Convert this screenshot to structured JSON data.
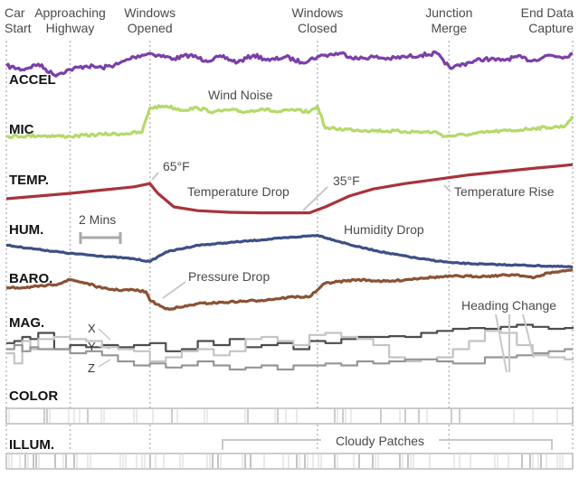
{
  "events": [
    {
      "label": [
        "Car",
        "Start"
      ],
      "x": 0
    },
    {
      "label": [
        "Approaching",
        "Highway"
      ],
      "x": 16
    },
    {
      "label": [
        "Windows",
        "Opened"
      ],
      "x": 36
    },
    {
      "label": [
        "Windows",
        "Closed"
      ],
      "x": 78
    },
    {
      "label": [
        "Junction",
        "Merge"
      ],
      "x": 111
    },
    {
      "label": [
        "End Data",
        "Capture"
      ],
      "x": 142
    }
  ],
  "sensors": [
    "ACCEL",
    "MIC",
    "TEMP.",
    "HUM.",
    "BARO.",
    "MAG.",
    "COLOR",
    "ILLUM."
  ],
  "scale_label": "2 Mins",
  "annotations": {
    "wind_noise": "Wind Noise",
    "temp_65": "65°F",
    "temp_drop": "Temperature Drop",
    "temp_35": "35°F",
    "temp_rise": "Temperature Rise",
    "humidity_drop": "Humidity Drop",
    "pressure_drop": "Pressure Drop",
    "heading_change": "Heading Change",
    "cloudy_patches": "Cloudy Patches"
  },
  "mag_axes": [
    "X",
    "Y",
    "Z"
  ],
  "colors": {
    "accel": "#7b3fa8",
    "mic": "#b5d96a",
    "temp": "#a8333b",
    "hum": "#3d4f86",
    "baro": "#8a5234",
    "mag_x": "#4d4d4d",
    "mag_y": "#c4c4c4",
    "mag_z": "#969696",
    "guide": "#b9b9b9",
    "annotation_line": "#c8c8c8"
  },
  "chart_data": {
    "type": "line",
    "x_unit": "minutes",
    "xlim": [
      0,
      142
    ],
    "series": [
      {
        "name": "ACCEL",
        "x": [
          0,
          4,
          8,
          12,
          16,
          20,
          24,
          28,
          32,
          34,
          36,
          38,
          42,
          46,
          50,
          54,
          58,
          62,
          66,
          70,
          74,
          78,
          80,
          84,
          88,
          92,
          96,
          100,
          104,
          108,
          110,
          112,
          116,
          120,
          124,
          128,
          132,
          136,
          140,
          142
        ],
        "y": [
          0.55,
          0.45,
          0.6,
          0.3,
          0.45,
          0.55,
          0.5,
          0.6,
          0.8,
          0.85,
          0.9,
          0.85,
          0.75,
          0.85,
          0.7,
          0.8,
          0.65,
          0.85,
          0.7,
          0.8,
          0.65,
          0.8,
          0.85,
          0.9,
          0.75,
          0.8,
          0.75,
          0.8,
          0.85,
          0.9,
          0.6,
          0.5,
          0.65,
          0.75,
          0.7,
          0.8,
          0.7,
          0.85,
          0.8,
          0.9
        ]
      },
      {
        "name": "MIC",
        "x": [
          0,
          8,
          16,
          24,
          30,
          34,
          36,
          40,
          44,
          48,
          52,
          56,
          60,
          64,
          68,
          72,
          76,
          78,
          80,
          90,
          100,
          108,
          110,
          116,
          122,
          128,
          132,
          136,
          140,
          142
        ],
        "y": [
          0.2,
          0.22,
          0.2,
          0.25,
          0.27,
          0.3,
          0.9,
          0.95,
          0.85,
          0.9,
          0.8,
          0.85,
          0.8,
          0.88,
          0.8,
          0.85,
          0.8,
          0.95,
          0.4,
          0.35,
          0.32,
          0.3,
          0.2,
          0.25,
          0.32,
          0.35,
          0.4,
          0.42,
          0.45,
          0.7
        ]
      },
      {
        "name": "TEMP.",
        "x": [
          0,
          8,
          16,
          24,
          32,
          36,
          38,
          42,
          48,
          56,
          64,
          72,
          76,
          80,
          86,
          92,
          100,
          108,
          116,
          124,
          132,
          138,
          142
        ],
        "y": [
          0.2,
          0.25,
          0.3,
          0.36,
          0.42,
          0.48,
          0.3,
          0.05,
          -0.02,
          -0.05,
          -0.06,
          -0.06,
          -0.06,
          0.05,
          0.25,
          0.38,
          0.48,
          0.56,
          0.64,
          0.7,
          0.76,
          0.8,
          0.83
        ]
      },
      {
        "name": "HUM.",
        "x": [
          0,
          8,
          16,
          24,
          32,
          36,
          40,
          48,
          56,
          64,
          72,
          78,
          82,
          88,
          96,
          104,
          112,
          120,
          128,
          136,
          142
        ],
        "y": [
          0.35,
          0.2,
          0.05,
          -0.05,
          -0.15,
          -0.25,
          0.1,
          0.35,
          0.45,
          0.55,
          0.65,
          0.72,
          0.55,
          0.3,
          0.05,
          -0.15,
          -0.3,
          -0.35,
          -0.38,
          -0.42,
          -0.45
        ]
      },
      {
        "name": "BARO.",
        "x": [
          0,
          8,
          12,
          16,
          20,
          24,
          28,
          32,
          35,
          36,
          40,
          44,
          48,
          56,
          64,
          72,
          76,
          78,
          80,
          88,
          96,
          104,
          112,
          120,
          128,
          132,
          136,
          140,
          142
        ],
        "y": [
          0.55,
          0.6,
          0.65,
          0.8,
          0.7,
          0.55,
          0.5,
          0.5,
          0.45,
          0.2,
          -0.05,
          0.0,
          0.1,
          0.15,
          0.2,
          0.3,
          0.3,
          0.5,
          0.7,
          0.8,
          0.75,
          0.85,
          0.9,
          0.9,
          0.95,
          0.85,
          1.0,
          1.05,
          1.1
        ]
      },
      {
        "name": "X",
        "x": [
          0,
          2,
          4,
          6,
          8,
          12,
          16,
          20,
          24,
          28,
          32,
          36,
          40,
          44,
          48,
          52,
          56,
          60,
          64,
          68,
          72,
          76,
          80,
          84,
          88,
          92,
          96,
          100,
          104,
          108,
          112,
          116,
          120,
          124,
          128,
          132,
          136,
          140,
          142
        ],
        "y": [
          0.45,
          0.5,
          0.6,
          0.55,
          0.7,
          0.3,
          0.4,
          0.35,
          0.4,
          0.35,
          0.4,
          0.45,
          0.25,
          0.3,
          0.5,
          0.4,
          0.55,
          0.35,
          0.4,
          0.45,
          0.3,
          0.5,
          0.45,
          0.55,
          0.6,
          0.6,
          0.62,
          0.6,
          0.7,
          0.75,
          0.8,
          0.82,
          0.8,
          0.85,
          0.9,
          0.85,
          0.8,
          0.82,
          0.85
        ]
      },
      {
        "name": "Y",
        "x": [
          0,
          2,
          4,
          6,
          8,
          12,
          16,
          20,
          24,
          28,
          32,
          36,
          40,
          44,
          48,
          52,
          56,
          60,
          64,
          68,
          72,
          76,
          80,
          84,
          88,
          92,
          96,
          100,
          104,
          108,
          112,
          116,
          120,
          124,
          128,
          132,
          136,
          140,
          142
        ],
        "y": [
          0.2,
          -0.05,
          0.5,
          0.3,
          0.55,
          0.6,
          0.55,
          0.5,
          0.35,
          0.3,
          0.25,
          0.0,
          0.1,
          0.25,
          0.3,
          0.15,
          0.25,
          0.55,
          0.6,
          0.5,
          0.4,
          0.65,
          0.7,
          0.6,
          0.55,
          0.4,
          0.1,
          0.0,
          0.05,
          0.1,
          0.3,
          0.5,
          0.75,
          0.7,
          0.4,
          0.15,
          0.1,
          0.05,
          0.1
        ]
      },
      {
        "name": "Z",
        "x": [
          0,
          2,
          4,
          6,
          8,
          12,
          16,
          20,
          24,
          28,
          32,
          36,
          40,
          44,
          48,
          52,
          56,
          60,
          64,
          68,
          72,
          76,
          80,
          84,
          88,
          92,
          96,
          100,
          104,
          108,
          112,
          116,
          120,
          124,
          128,
          132,
          136,
          140,
          142
        ],
        "y": [
          0.3,
          0.4,
          0.25,
          0.35,
          0.3,
          0.3,
          0.2,
          0.25,
          0.15,
          0.0,
          -0.1,
          -0.05,
          -0.15,
          -0.1,
          0.0,
          -0.1,
          -0.2,
          -0.15,
          -0.1,
          -0.2,
          -0.1,
          -0.1,
          -0.05,
          -0.1,
          0.0,
          -0.05,
          0.0,
          0.05,
          0.05,
          0.0,
          -0.05,
          -0.05,
          0.1,
          0.1,
          0.15,
          0.2,
          0.25,
          0.3,
          0.3
        ]
      }
    ]
  }
}
